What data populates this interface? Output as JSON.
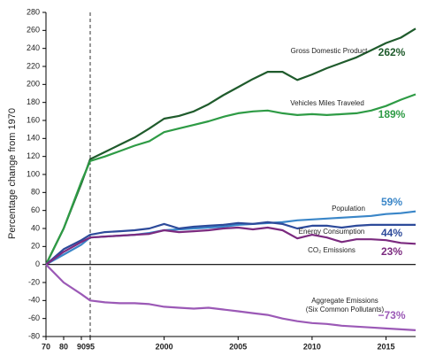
{
  "chart_data": {
    "type": "line",
    "y_label": "Percentage change from 1970",
    "x": [
      1970,
      1980,
      1990,
      1995,
      1996,
      1997,
      1998,
      1999,
      2000,
      2001,
      2002,
      2003,
      2004,
      2005,
      2006,
      2007,
      2008,
      2009,
      2010,
      2011,
      2012,
      2013,
      2014,
      2015,
      2016,
      2017
    ],
    "xlim": [
      1970,
      2017
    ],
    "xticks": [
      {
        "value": 1970,
        "label": "70"
      },
      {
        "value": 1980,
        "label": "80"
      },
      {
        "value": 1990,
        "label": "90"
      },
      {
        "value": 1995,
        "label": "95"
      },
      2000,
      2005,
      2010,
      2015
    ],
    "ylim": [
      -80,
      280
    ],
    "yticks": [
      -80,
      -60,
      -40,
      -20,
      0,
      20,
      40,
      60,
      80,
      100,
      120,
      140,
      160,
      180,
      200,
      220,
      240,
      260,
      280
    ],
    "vline": 1995,
    "series": [
      {
        "name": "Gross Domestic Product",
        "color": "#1f5b2c",
        "end_label": "262%",
        "values": [
          0,
          40,
          90,
          117,
          125,
          133,
          141,
          151,
          162,
          165,
          170,
          178,
          188,
          197,
          206,
          214,
          214,
          205,
          211,
          218,
          224,
          230,
          238,
          246,
          252,
          262
        ]
      },
      {
        "name": "Vehicles Miles Traveled",
        "color": "#2e9b45",
        "end_label": "189%",
        "values": [
          0,
          40,
          92,
          115,
          120,
          126,
          132,
          137,
          147,
          151,
          155,
          159,
          164,
          168,
          170,
          171,
          168,
          166,
          167,
          166,
          167,
          168,
          171,
          176,
          183,
          189
        ]
      },
      {
        "name": "Population",
        "color": "#3a86c8",
        "end_label": "59%",
        "values": [
          0,
          11,
          22,
          30,
          31,
          32,
          33,
          35,
          38,
          39,
          40,
          41,
          42,
          44,
          45,
          46,
          47,
          49,
          50,
          51,
          52,
          53,
          54,
          56,
          57,
          59
        ]
      },
      {
        "name": "Energy Consumption",
        "color": "#2d4a9a",
        "end_label": "44%",
        "values": [
          0,
          17,
          27,
          33,
          36,
          37,
          38,
          40,
          45,
          40,
          42,
          43,
          44,
          46,
          45,
          47,
          45,
          40,
          43,
          43,
          41,
          43,
          44,
          44,
          44,
          44
        ]
      },
      {
        "name": "CO₂ Emissions",
        "color": "#7b2a7f",
        "end_label": "23%",
        "values": [
          0,
          14,
          25,
          30,
          31,
          32,
          33,
          34,
          38,
          36,
          37,
          38,
          40,
          41,
          39,
          41,
          38,
          29,
          33,
          30,
          25,
          28,
          28,
          27,
          24,
          23
        ]
      },
      {
        "name": "Aggregate Emissions (Six Common Pollutants)",
        "color": "#9b59b6",
        "end_label": "−73%",
        "values": [
          0,
          -20,
          -33,
          -40,
          -42,
          -43,
          -43,
          -44,
          -47,
          -48,
          -49,
          -48,
          -50,
          -52,
          -54,
          -56,
          -60,
          -63,
          -65,
          -66,
          -68,
          -69,
          -70,
          -71,
          -72,
          -73
        ]
      }
    ]
  }
}
